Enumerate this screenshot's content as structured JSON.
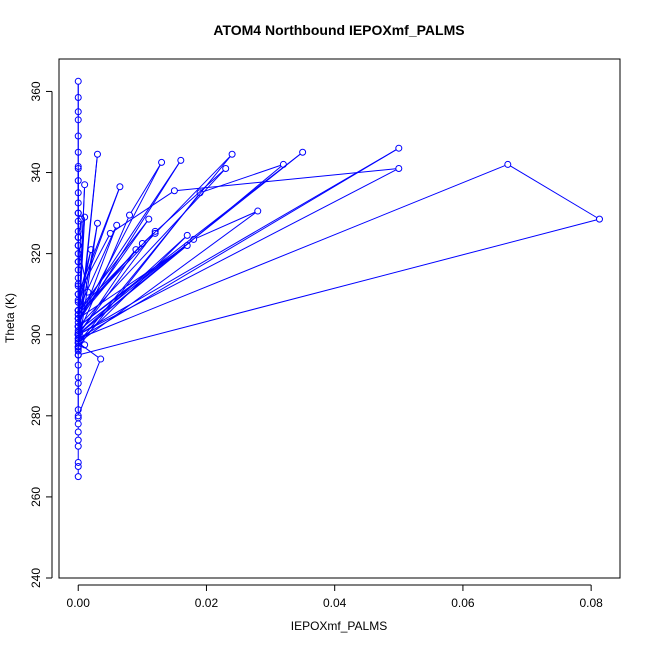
{
  "chart_data": {
    "type": "scatter",
    "title": "ATOM4 Northbound IEPOXmf_PALMS",
    "xlabel": "IEPOXmf_PALMS",
    "ylabel": "Theta (K)",
    "xlim": [
      -0.003,
      0.0845
    ],
    "ylim": [
      240,
      368
    ],
    "xticks": [
      "0.00",
      "0.02",
      "0.04",
      "0.06",
      "0.08"
    ],
    "xtick_values": [
      0.0,
      0.02,
      0.04,
      0.06,
      0.08
    ],
    "yticks": [
      "240",
      "260",
      "280",
      "300",
      "320",
      "340",
      "360"
    ],
    "ytick_values": [
      240,
      260,
      280,
      300,
      320,
      340,
      360
    ],
    "grid": false,
    "legend": "none",
    "series_style": "points connected by lines (type='o')",
    "color": "#0000ff",
    "series": [
      {
        "x": [
          0.0,
          0.0,
          0.0,
          0.0,
          0.0,
          0.0,
          0.0,
          0.0,
          0.0,
          0.0,
          0.0,
          0.0,
          0.0,
          0.0,
          0.0,
          0.0,
          0.0,
          0.0,
          0.0,
          0.0,
          0.0,
          0.0,
          0.0,
          0.0,
          0.0,
          0.0,
          0.0,
          0.0,
          0.0,
          0.0,
          0.0,
          0.0,
          0.0,
          0.0,
          0.0,
          0.0,
          0.0,
          0.0,
          0.0,
          0.0,
          0.0,
          0.0,
          0.0,
          0.0,
          0.003,
          0.0,
          0.05,
          0.0,
          0.001,
          0.0,
          0.035,
          0.0,
          0.003,
          0.0,
          0.0,
          0.0,
          0.024,
          0.012,
          0.0,
          0.016,
          0.0,
          0.013,
          0.008,
          0.0,
          0.032,
          0.019,
          0.0,
          0.0,
          0.067,
          0.0813,
          0.0,
          0.0,
          0.05,
          0.015,
          0.005,
          0.0,
          0.0065,
          0.0,
          0.002,
          0.0,
          0.006,
          0.0,
          0.023,
          0.01,
          0.0,
          0.0,
          0.017,
          0.0,
          0.028,
          0.018,
          0.0,
          0.0,
          0.011,
          0.0,
          0.012,
          0.0,
          0.017,
          0.0,
          0.009,
          0.0,
          0.001,
          0.0,
          0.001,
          0.0,
          0.0035,
          0.0,
          0.0,
          0.0,
          0.0015,
          0.0,
          0.0005,
          0.0,
          0.0
        ],
        "y": [
          265.0,
          267.5,
          268.5,
          272.5,
          274.0,
          276.0,
          278.0,
          279.5,
          281.5,
          286.0,
          288.0,
          289.5,
          292.5,
          295.0,
          296.0,
          297.0,
          298.5,
          300.5,
          302.0,
          304.0,
          306.0,
          308.0,
          310.0,
          312.5,
          314.0,
          316.0,
          318.0,
          320.0,
          322.0,
          324.0,
          325.5,
          328.0,
          330.0,
          332.5,
          335.0,
          338.0,
          341.5,
          345.0,
          349.0,
          353.0,
          355.0,
          358.5,
          362.5,
          297.0,
          344.5,
          299.0,
          346.0,
          300.0,
          337.0,
          302.0,
          345.0,
          301.0,
          327.5,
          296.5,
          341.0,
          298.0,
          344.5,
          325.0,
          305.0,
          343.0,
          303.0,
          342.5,
          329.5,
          300.0,
          342.0,
          335.0,
          297.0,
          299.0,
          342.0,
          328.5,
          295.0,
          300.0,
          341.0,
          335.5,
          325.0,
          310.0,
          336.5,
          308.5,
          321.0,
          306.0,
          327.0,
          302.0,
          341.0,
          322.5,
          305.0,
          300.0,
          324.5,
          298.0,
          330.5,
          323.5,
          302.0,
          304.0,
          328.5,
          306.0,
          325.5,
          300.0,
          322.0,
          304.0,
          321.0,
          300.0,
          329.0,
          306.0,
          297.5,
          298.0,
          294.0,
          280.0,
          318.0,
          322.0,
          310.5,
          312.0,
          328.5,
          324.0,
          330.0
        ]
      }
    ]
  }
}
